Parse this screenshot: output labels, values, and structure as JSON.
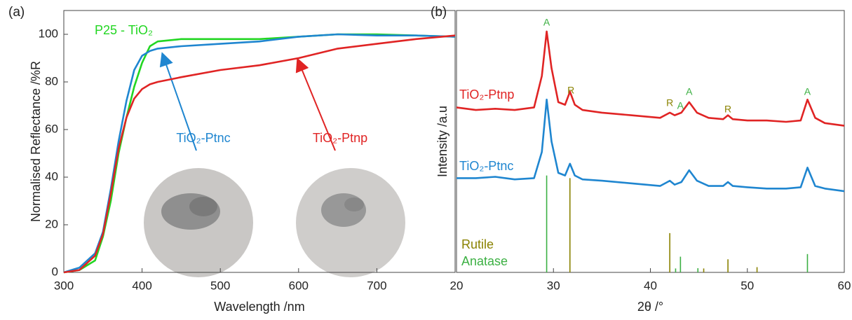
{
  "chart_data": [
    {
      "type": "line",
      "panel": "(a)",
      "xlabel": "Wavelength /nm",
      "ylabel": "Normalised Reflectance /%R",
      "xlim": [
        300,
        800
      ],
      "xticks": [
        300,
        400,
        500,
        600,
        700
      ],
      "ylim": [
        0,
        110
      ],
      "yticks": [
        0,
        20,
        40,
        60,
        80,
        100
      ],
      "x": [
        300,
        320,
        340,
        350,
        360,
        370,
        380,
        390,
        400,
        410,
        420,
        450,
        500,
        550,
        600,
        650,
        700,
        750,
        800
      ],
      "series": [
        {
          "name": "P25 - TiO₂",
          "color": "#22d622",
          "values": [
            0,
            1,
            5,
            15,
            30,
            50,
            65,
            78,
            88,
            95,
            97,
            98,
            98,
            98,
            99,
            100,
            100,
            99.5,
            99
          ]
        },
        {
          "name": "TiO₂-Ptnc",
          "color": "#1f86d0",
          "values": [
            0,
            2,
            8,
            17,
            35,
            55,
            72,
            85,
            91,
            93,
            94,
            95,
            96,
            97,
            99,
            100,
            99.5,
            99.5,
            99
          ]
        },
        {
          "name": "TiO₂-Ptnp",
          "color": "#e02424",
          "values": [
            0,
            1,
            7,
            16,
            33,
            52,
            65,
            73,
            77,
            79,
            80,
            82,
            85,
            87,
            90,
            94,
            96,
            98,
            99.5
          ]
        }
      ]
    },
    {
      "type": "line",
      "panel": "(b)",
      "xlabel": "2θ /°",
      "ylabel": "Intensity /a.u",
      "xlim": [
        20,
        60
      ],
      "xticks": [
        20,
        30,
        40,
        50,
        60
      ],
      "ylim": [
        0,
        100
      ],
      "x": [
        20,
        22,
        24,
        26,
        28,
        28.8,
        29.3,
        29.8,
        30.5,
        31.2,
        31.7,
        32.2,
        33,
        35,
        38,
        41,
        42,
        42.5,
        43.2,
        44,
        44.8,
        46,
        47.5,
        48,
        48.5,
        50,
        52,
        54,
        55.5,
        56.2,
        57,
        58,
        60
      ],
      "series": [
        {
          "name": "TiO₂-Ptnp",
          "color": "#e02424",
          "values": [
            63,
            62,
            62.5,
            62,
            63,
            75,
            92,
            78,
            65,
            64,
            69,
            64,
            62,
            61,
            60,
            59,
            61,
            60,
            61,
            65,
            61,
            59,
            58.5,
            60,
            58.5,
            58,
            58,
            57.5,
            58,
            66,
            59,
            57,
            56
          ]
        },
        {
          "name": "TiO₂-Ptnc",
          "color": "#1f86d0",
          "values": [
            36,
            36,
            36.5,
            35.5,
            36,
            46,
            66,
            50,
            38,
            37,
            41.5,
            37,
            35.5,
            35,
            34,
            33,
            35,
            33.5,
            34.5,
            39,
            35,
            33,
            33,
            34.5,
            33,
            32.5,
            32,
            32,
            32.5,
            40,
            33,
            32,
            31
          ]
        },
        {
          "name": "Rutile",
          "color": "#8a8200",
          "style": "stick",
          "x": [
            31.7,
            42,
            45.5,
            48,
            51
          ],
          "values": [
            36,
            15,
            1.5,
            5,
            2
          ]
        },
        {
          "name": "Anatase",
          "color": "#3cb043",
          "style": "stick",
          "x": [
            29.3,
            42.6,
            43.1,
            44.9,
            56.2
          ],
          "values": [
            37,
            1.5,
            6,
            1.6,
            7
          ]
        }
      ],
      "annotations": [
        {
          "text": "A",
          "color": "#3cb043"
        },
        {
          "text": "R",
          "color": "#8a8200"
        },
        {
          "text": "R",
          "color": "#8a8200"
        },
        {
          "text": "A",
          "color": "#3cb043"
        },
        {
          "text": "A",
          "color": "#3cb043"
        },
        {
          "text": "R",
          "color": "#8a8200"
        },
        {
          "text": "A",
          "color": "#3cb043"
        }
      ]
    }
  ]
}
